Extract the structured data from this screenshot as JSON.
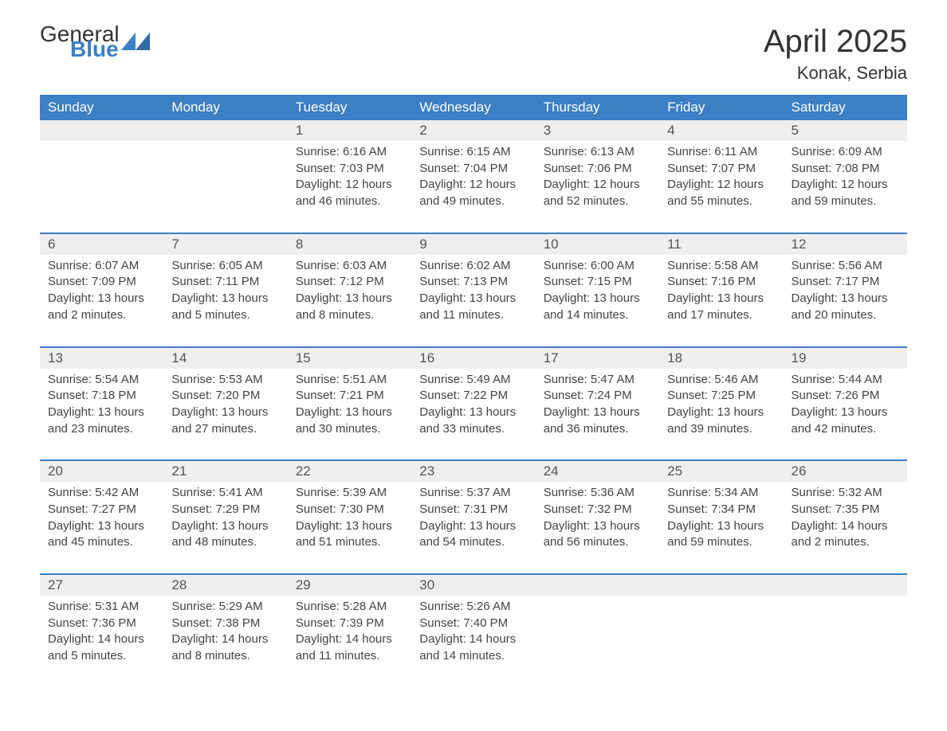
{
  "brand": {
    "line1": "General",
    "line2": "Blue",
    "colors": {
      "general": "#333333",
      "blue": "#3b7fc4",
      "triangle": "#3b7fc4"
    }
  },
  "title": {
    "month_year": "April 2025",
    "location": "Konak, Serbia",
    "title_fontsize": 40,
    "location_fontsize": 22,
    "color": "#333333"
  },
  "calendar": {
    "header_bg": "#3b7fc4",
    "header_text_color": "#ffffff",
    "daynum_bg": "#efefef",
    "daynum_border": "#3b7fc4",
    "body_text_color": "#444444",
    "days": [
      "Sunday",
      "Monday",
      "Tuesday",
      "Wednesday",
      "Thursday",
      "Friday",
      "Saturday"
    ],
    "weeks": [
      {
        "nums": [
          "",
          "",
          "1",
          "2",
          "3",
          "4",
          "5"
        ],
        "cells": [
          {
            "sunrise": "",
            "sunset": "",
            "daylight": ""
          },
          {
            "sunrise": "",
            "sunset": "",
            "daylight": ""
          },
          {
            "sunrise": "Sunrise: 6:16 AM",
            "sunset": "Sunset: 7:03 PM",
            "daylight": "Daylight: 12 hours and 46 minutes."
          },
          {
            "sunrise": "Sunrise: 6:15 AM",
            "sunset": "Sunset: 7:04 PM",
            "daylight": "Daylight: 12 hours and 49 minutes."
          },
          {
            "sunrise": "Sunrise: 6:13 AM",
            "sunset": "Sunset: 7:06 PM",
            "daylight": "Daylight: 12 hours and 52 minutes."
          },
          {
            "sunrise": "Sunrise: 6:11 AM",
            "sunset": "Sunset: 7:07 PM",
            "daylight": "Daylight: 12 hours and 55 minutes."
          },
          {
            "sunrise": "Sunrise: 6:09 AM",
            "sunset": "Sunset: 7:08 PM",
            "daylight": "Daylight: 12 hours and 59 minutes."
          }
        ]
      },
      {
        "nums": [
          "6",
          "7",
          "8",
          "9",
          "10",
          "11",
          "12"
        ],
        "cells": [
          {
            "sunrise": "Sunrise: 6:07 AM",
            "sunset": "Sunset: 7:09 PM",
            "daylight": "Daylight: 13 hours and 2 minutes."
          },
          {
            "sunrise": "Sunrise: 6:05 AM",
            "sunset": "Sunset: 7:11 PM",
            "daylight": "Daylight: 13 hours and 5 minutes."
          },
          {
            "sunrise": "Sunrise: 6:03 AM",
            "sunset": "Sunset: 7:12 PM",
            "daylight": "Daylight: 13 hours and 8 minutes."
          },
          {
            "sunrise": "Sunrise: 6:02 AM",
            "sunset": "Sunset: 7:13 PM",
            "daylight": "Daylight: 13 hours and 11 minutes."
          },
          {
            "sunrise": "Sunrise: 6:00 AM",
            "sunset": "Sunset: 7:15 PM",
            "daylight": "Daylight: 13 hours and 14 minutes."
          },
          {
            "sunrise": "Sunrise: 5:58 AM",
            "sunset": "Sunset: 7:16 PM",
            "daylight": "Daylight: 13 hours and 17 minutes."
          },
          {
            "sunrise": "Sunrise: 5:56 AM",
            "sunset": "Sunset: 7:17 PM",
            "daylight": "Daylight: 13 hours and 20 minutes."
          }
        ]
      },
      {
        "nums": [
          "13",
          "14",
          "15",
          "16",
          "17",
          "18",
          "19"
        ],
        "cells": [
          {
            "sunrise": "Sunrise: 5:54 AM",
            "sunset": "Sunset: 7:18 PM",
            "daylight": "Daylight: 13 hours and 23 minutes."
          },
          {
            "sunrise": "Sunrise: 5:53 AM",
            "sunset": "Sunset: 7:20 PM",
            "daylight": "Daylight: 13 hours and 27 minutes."
          },
          {
            "sunrise": "Sunrise: 5:51 AM",
            "sunset": "Sunset: 7:21 PM",
            "daylight": "Daylight: 13 hours and 30 minutes."
          },
          {
            "sunrise": "Sunrise: 5:49 AM",
            "sunset": "Sunset: 7:22 PM",
            "daylight": "Daylight: 13 hours and 33 minutes."
          },
          {
            "sunrise": "Sunrise: 5:47 AM",
            "sunset": "Sunset: 7:24 PM",
            "daylight": "Daylight: 13 hours and 36 minutes."
          },
          {
            "sunrise": "Sunrise: 5:46 AM",
            "sunset": "Sunset: 7:25 PM",
            "daylight": "Daylight: 13 hours and 39 minutes."
          },
          {
            "sunrise": "Sunrise: 5:44 AM",
            "sunset": "Sunset: 7:26 PM",
            "daylight": "Daylight: 13 hours and 42 minutes."
          }
        ]
      },
      {
        "nums": [
          "20",
          "21",
          "22",
          "23",
          "24",
          "25",
          "26"
        ],
        "cells": [
          {
            "sunrise": "Sunrise: 5:42 AM",
            "sunset": "Sunset: 7:27 PM",
            "daylight": "Daylight: 13 hours and 45 minutes."
          },
          {
            "sunrise": "Sunrise: 5:41 AM",
            "sunset": "Sunset: 7:29 PM",
            "daylight": "Daylight: 13 hours and 48 minutes."
          },
          {
            "sunrise": "Sunrise: 5:39 AM",
            "sunset": "Sunset: 7:30 PM",
            "daylight": "Daylight: 13 hours and 51 minutes."
          },
          {
            "sunrise": "Sunrise: 5:37 AM",
            "sunset": "Sunset: 7:31 PM",
            "daylight": "Daylight: 13 hours and 54 minutes."
          },
          {
            "sunrise": "Sunrise: 5:36 AM",
            "sunset": "Sunset: 7:32 PM",
            "daylight": "Daylight: 13 hours and 56 minutes."
          },
          {
            "sunrise": "Sunrise: 5:34 AM",
            "sunset": "Sunset: 7:34 PM",
            "daylight": "Daylight: 13 hours and 59 minutes."
          },
          {
            "sunrise": "Sunrise: 5:32 AM",
            "sunset": "Sunset: 7:35 PM",
            "daylight": "Daylight: 14 hours and 2 minutes."
          }
        ]
      },
      {
        "nums": [
          "27",
          "28",
          "29",
          "30",
          "",
          "",
          ""
        ],
        "cells": [
          {
            "sunrise": "Sunrise: 5:31 AM",
            "sunset": "Sunset: 7:36 PM",
            "daylight": "Daylight: 14 hours and 5 minutes."
          },
          {
            "sunrise": "Sunrise: 5:29 AM",
            "sunset": "Sunset: 7:38 PM",
            "daylight": "Daylight: 14 hours and 8 minutes."
          },
          {
            "sunrise": "Sunrise: 5:28 AM",
            "sunset": "Sunset: 7:39 PM",
            "daylight": "Daylight: 14 hours and 11 minutes."
          },
          {
            "sunrise": "Sunrise: 5:26 AM",
            "sunset": "Sunset: 7:40 PM",
            "daylight": "Daylight: 14 hours and 14 minutes."
          },
          {
            "sunrise": "",
            "sunset": "",
            "daylight": ""
          },
          {
            "sunrise": "",
            "sunset": "",
            "daylight": ""
          },
          {
            "sunrise": "",
            "sunset": "",
            "daylight": ""
          }
        ]
      }
    ]
  }
}
